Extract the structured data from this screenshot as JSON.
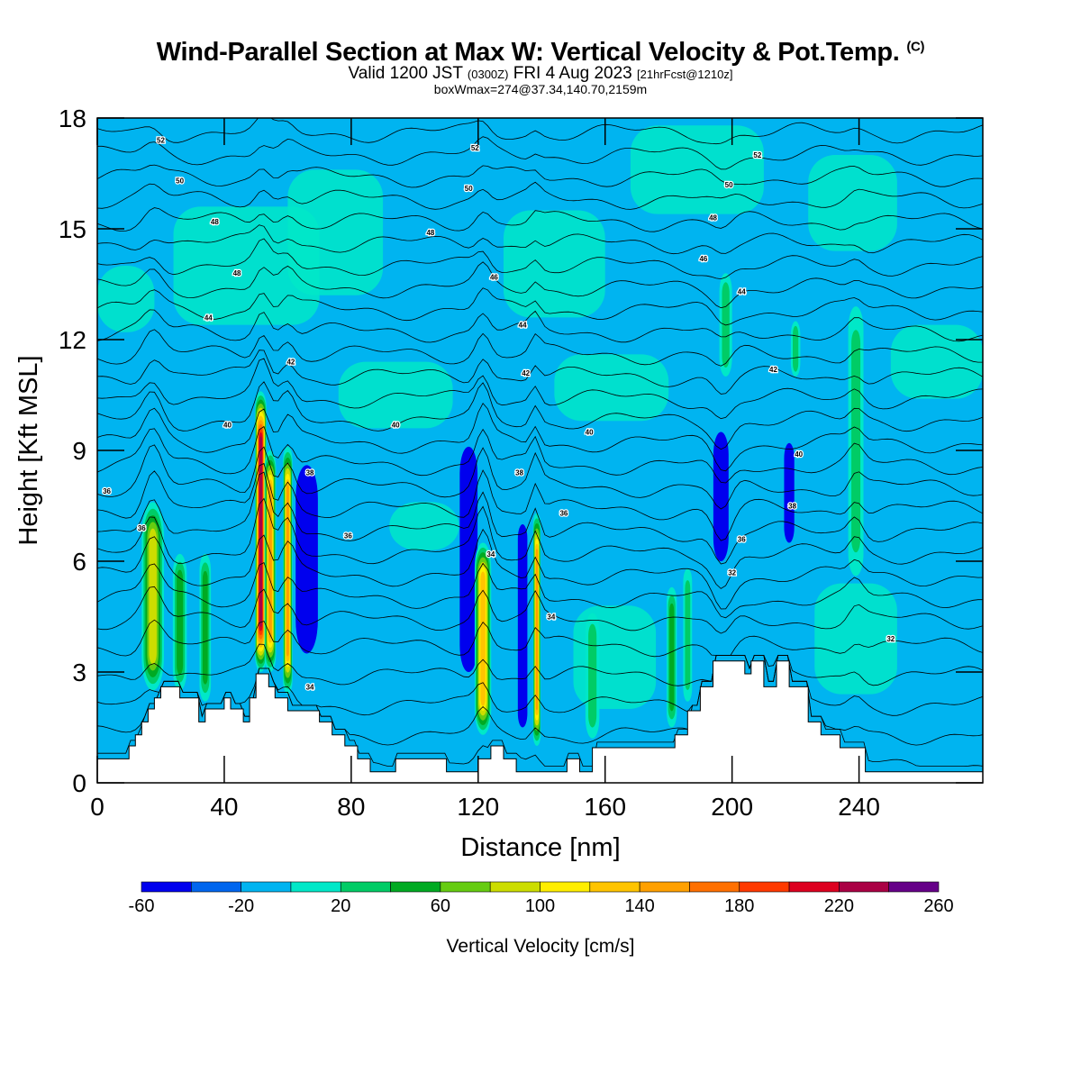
{
  "title": {
    "main": "Wind-Parallel Section at Max W: Vertical Velocity & Pot.Temp.",
    "copyright": "(C)",
    "valid_a": "Valid 1200 JST",
    "valid_z": "(0300Z)",
    "valid_b": "FRI 4 Aug 2023",
    "valid_fcst": "[21hrFcst@1210z]",
    "box": "boxWmax=274@37.34,140.70,2159m"
  },
  "chart_data": {
    "type": "heatmap",
    "xlabel": "Distance [nm]",
    "ylabel": "Height [Kft MSL]",
    "xlim": [
      0,
      279
    ],
    "ylim": [
      0,
      18
    ],
    "xticks": [
      "0",
      "40",
      "80",
      "120",
      "160",
      "200",
      "240"
    ],
    "xtick_values": [
      0,
      40,
      80,
      120,
      160,
      200,
      240
    ],
    "yticks": [
      "0",
      "3",
      "6",
      "9",
      "12",
      "15",
      "18"
    ],
    "ytick_values": [
      0,
      3,
      6,
      9,
      12,
      15,
      18
    ],
    "colorbar": {
      "label": "Vertical Velocity [cm/s]",
      "tick_labels": [
        "-60",
        "-20",
        "20",
        "60",
        "100",
        "140",
        "180",
        "220",
        "260"
      ],
      "levels": [
        -60,
        -40,
        -20,
        0,
        20,
        40,
        60,
        80,
        100,
        120,
        140,
        160,
        180,
        200,
        220,
        240,
        260
      ],
      "colors": [
        "#0000ee",
        "#0066ee",
        "#00b4f0",
        "#00e8c8",
        "#00cc66",
        "#00aa22",
        "#66cc11",
        "#ccdd00",
        "#ffee00",
        "#ffc400",
        "#ffa000",
        "#ff7000",
        "#ff3a00",
        "#dd0020",
        "#aa0044",
        "#660088"
      ]
    },
    "background_value_cm_s": -10,
    "terrain_kft": [
      [
        0,
        0.65
      ],
      [
        8,
        0.65
      ],
      [
        10,
        1.0
      ],
      [
        12,
        1.3
      ],
      [
        14,
        1.65
      ],
      [
        16,
        2.0
      ],
      [
        18,
        2.3
      ],
      [
        20,
        2.6
      ],
      [
        24,
        2.6
      ],
      [
        26,
        2.3
      ],
      [
        30,
        2.3
      ],
      [
        32,
        1.65
      ],
      [
        34,
        2.0
      ],
      [
        38,
        2.0
      ],
      [
        40,
        2.3
      ],
      [
        42,
        2.0
      ],
      [
        44,
        2.0
      ],
      [
        46,
        1.65
      ],
      [
        48,
        2.3
      ],
      [
        50,
        2.95
      ],
      [
        54,
        2.6
      ],
      [
        56,
        2.3
      ],
      [
        60,
        1.95
      ],
      [
        66,
        1.95
      ],
      [
        70,
        1.65
      ],
      [
        74,
        1.3
      ],
      [
        78,
        1.0
      ],
      [
        82,
        0.65
      ],
      [
        86,
        0.3
      ],
      [
        90,
        0.3
      ],
      [
        94,
        0.65
      ],
      [
        106,
        0.65
      ],
      [
        110,
        0.3
      ],
      [
        116,
        0.3
      ],
      [
        120,
        0.65
      ],
      [
        124,
        1.0
      ],
      [
        128,
        0.65
      ],
      [
        132,
        0.3
      ],
      [
        138,
        0.3
      ],
      [
        148,
        0.65
      ],
      [
        152,
        0.3
      ],
      [
        156,
        0.95
      ],
      [
        178,
        0.95
      ],
      [
        182,
        1.3
      ],
      [
        186,
        1.95
      ],
      [
        190,
        2.6
      ],
      [
        194,
        3.3
      ],
      [
        200,
        3.3
      ],
      [
        204,
        2.95
      ],
      [
        206,
        3.3
      ],
      [
        210,
        2.6
      ],
      [
        214,
        3.3
      ],
      [
        218,
        2.6
      ],
      [
        224,
        1.65
      ],
      [
        228,
        1.3
      ],
      [
        234,
        0.95
      ],
      [
        240,
        0.95
      ],
      [
        242,
        0.3
      ],
      [
        244,
        0.3
      ],
      [
        279,
        0.3
      ]
    ],
    "updrafts": [
      {
        "x": 17.5,
        "z0": 2.5,
        "z1": 7.6,
        "w": 3.5,
        "peak": 100
      },
      {
        "x": 26,
        "z0": 2.5,
        "z1": 6.2,
        "w": 2.2,
        "peak": 45
      },
      {
        "x": 34,
        "z0": 2.2,
        "z1": 6.2,
        "w": 1.8,
        "peak": 50
      },
      {
        "x": 51.5,
        "z0": 3.0,
        "z1": 10.6,
        "w": 1.8,
        "peak": 230
      },
      {
        "x": 54.5,
        "z0": 3.0,
        "z1": 9.0,
        "w": 1.8,
        "peak": 160
      },
      {
        "x": 60,
        "z0": 2.4,
        "z1": 9.1,
        "w": 1.5,
        "peak": 150
      },
      {
        "x": 121.5,
        "z0": 1.3,
        "z1": 6.5,
        "w": 2.6,
        "peak": 140
      },
      {
        "x": 138.5,
        "z0": 1.0,
        "z1": 7.3,
        "w": 1.2,
        "peak": 150
      },
      {
        "x": 156,
        "z0": 1.2,
        "z1": 4.6,
        "w": 2.2,
        "peak": 40
      },
      {
        "x": 181,
        "z0": 1.5,
        "z1": 5.3,
        "w": 1.6,
        "peak": 45
      },
      {
        "x": 186,
        "z0": 2.2,
        "z1": 5.8,
        "w": 1.4,
        "peak": 40
      },
      {
        "x": 198,
        "z0": 11.0,
        "z1": 13.8,
        "w": 2.0,
        "peak": 30
      },
      {
        "x": 220,
        "z0": 11.0,
        "z1": 12.5,
        "w": 1.5,
        "peak": 25
      },
      {
        "x": 239,
        "z0": 5.6,
        "z1": 12.9,
        "w": 2.4,
        "peak": 40
      }
    ],
    "downdrafts": [
      {
        "x": 48,
        "z0": 2.5,
        "z1": 8.0,
        "w": 1.5,
        "peak": -30
      },
      {
        "x": 66,
        "z0": 3.5,
        "z1": 8.6,
        "w": 3.5,
        "peak": -40
      },
      {
        "x": 117,
        "z0": 3.0,
        "z1": 9.1,
        "w": 2.8,
        "peak": -40
      },
      {
        "x": 134,
        "z0": 1.5,
        "z1": 7.0,
        "w": 1.5,
        "peak": -40
      },
      {
        "x": 142,
        "z0": 1.5,
        "z1": 6.5,
        "w": 1.5,
        "peak": -35
      },
      {
        "x": 196.5,
        "z0": 6.0,
        "z1": 9.5,
        "w": 2.4,
        "peak": -60
      },
      {
        "x": 218,
        "z0": 6.5,
        "z1": 9.2,
        "w": 1.6,
        "peak": -45
      },
      {
        "x": 212,
        "z0": 3.3,
        "z1": 6.0,
        "w": 1.5,
        "peak": -30
      }
    ],
    "theta_isentropes_kft": [
      0.5,
      1.3,
      2.1,
      2.9,
      3.7,
      4.4,
      5.0,
      5.6,
      6.2,
      6.8,
      7.4,
      8.0,
      8.6,
      9.2,
      9.8,
      10.4,
      11.0,
      11.6,
      12.2,
      12.8,
      13.4,
      14.0,
      14.6,
      15.2,
      15.8,
      16.4,
      17.0,
      17.6
    ],
    "contour_labels": [
      {
        "text": "52",
        "x": 20,
        "z": 17.4
      },
      {
        "text": "50",
        "x": 26,
        "z": 16.3
      },
      {
        "text": "48",
        "x": 37,
        "z": 15.2
      },
      {
        "text": "48",
        "x": 44,
        "z": 13.8
      },
      {
        "text": "44",
        "x": 35,
        "z": 12.6
      },
      {
        "text": "42",
        "x": 61,
        "z": 11.4
      },
      {
        "text": "40",
        "x": 41,
        "z": 9.7
      },
      {
        "text": "38",
        "x": 67,
        "z": 8.4
      },
      {
        "text": "36",
        "x": 79,
        "z": 6.7
      },
      {
        "text": "36",
        "x": 3,
        "z": 7.9
      },
      {
        "text": "36",
        "x": 14,
        "z": 6.9
      },
      {
        "text": "34",
        "x": 67,
        "z": 2.6
      },
      {
        "text": "52",
        "x": 119,
        "z": 17.2
      },
      {
        "text": "50",
        "x": 117,
        "z": 16.1
      },
      {
        "text": "48",
        "x": 105,
        "z": 14.9
      },
      {
        "text": "46",
        "x": 125,
        "z": 13.7
      },
      {
        "text": "44",
        "x": 134,
        "z": 12.4
      },
      {
        "text": "42",
        "x": 135,
        "z": 11.1
      },
      {
        "text": "40",
        "x": 94,
        "z": 9.7
      },
      {
        "text": "40",
        "x": 155,
        "z": 9.5
      },
      {
        "text": "38",
        "x": 133,
        "z": 8.4
      },
      {
        "text": "36",
        "x": 147,
        "z": 7.3
      },
      {
        "text": "34",
        "x": 124,
        "z": 6.2
      },
      {
        "text": "34",
        "x": 143,
        "z": 4.5
      },
      {
        "text": "52",
        "x": 208,
        "z": 17.0
      },
      {
        "text": "50",
        "x": 199,
        "z": 16.2
      },
      {
        "text": "48",
        "x": 194,
        "z": 15.3
      },
      {
        "text": "46",
        "x": 191,
        "z": 14.2
      },
      {
        "text": "44",
        "x": 203,
        "z": 13.3
      },
      {
        "text": "42",
        "x": 213,
        "z": 11.2
      },
      {
        "text": "40",
        "x": 221,
        "z": 8.9
      },
      {
        "text": "38",
        "x": 219,
        "z": 7.5
      },
      {
        "text": "36",
        "x": 203,
        "z": 6.6
      },
      {
        "text": "32",
        "x": 200,
        "z": 5.7
      },
      {
        "text": "32",
        "x": 250,
        "z": 3.9
      }
    ]
  }
}
